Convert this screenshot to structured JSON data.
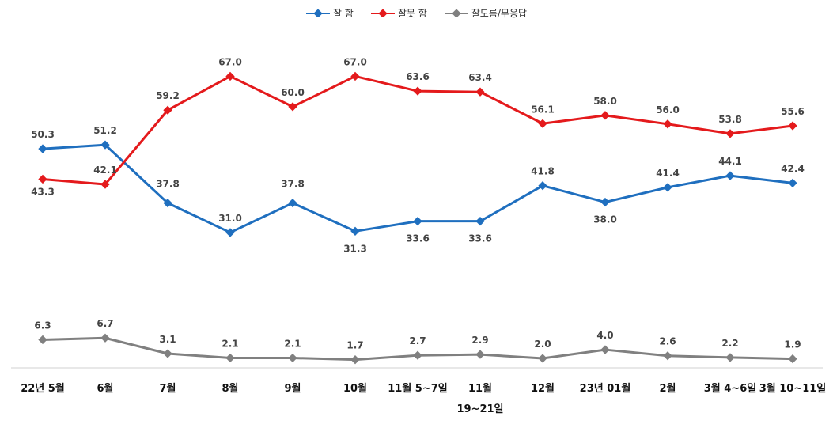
{
  "chart_data": {
    "type": "line",
    "categories": [
      "22년 5월",
      "6월",
      "7월",
      "8월",
      "9월",
      "10월",
      "11월 5~7일",
      "11월",
      "12월",
      "23년 01월",
      "2월",
      "3월 4~6일",
      "3월 10~11일"
    ],
    "category_sublabels": {
      "7": "19~21일"
    },
    "series": [
      {
        "name": "잘 함",
        "color": "#1f6fbf",
        "values": [
          50.3,
          51.2,
          37.8,
          31.0,
          37.8,
          31.3,
          33.6,
          33.6,
          41.8,
          38.0,
          41.4,
          44.1,
          42.4
        ]
      },
      {
        "name": "잘못 함",
        "color": "#e41a1c",
        "values": [
          43.3,
          42.1,
          59.2,
          67.0,
          60.0,
          67.0,
          63.6,
          63.4,
          56.1,
          58.0,
          56.0,
          53.8,
          55.6
        ]
      },
      {
        "name": "잘모름/무응답",
        "color": "#808080",
        "values": [
          6.3,
          6.7,
          3.1,
          2.1,
          2.1,
          1.7,
          2.7,
          2.9,
          2.0,
          4.0,
          2.6,
          2.2,
          1.9
        ]
      }
    ],
    "value_labels": {
      "0": [
        "50.3",
        "51.2",
        "37.8",
        "31.0",
        "37.8",
        "31.3",
        "33.6",
        "33.6",
        "41.8",
        "38.0",
        "41.4",
        "44.1",
        "42.4"
      ],
      "1": [
        "43.3",
        "42.1",
        "59.2",
        "67.0",
        "60.0",
        "67.0",
        "63.6",
        "63.4",
        "56.1",
        "58.0",
        "56.0",
        "53.8",
        "55.6"
      ],
      "2": [
        "6.3",
        "6.7",
        "3.1",
        "2.1",
        "2.1",
        "1.7",
        "2.7",
        "2.9",
        "2.0",
        "4.0",
        "2.6",
        "2.2",
        "1.9"
      ]
    },
    "ylim": [
      0,
      70
    ],
    "legend_position": "top-center",
    "grid": false
  }
}
